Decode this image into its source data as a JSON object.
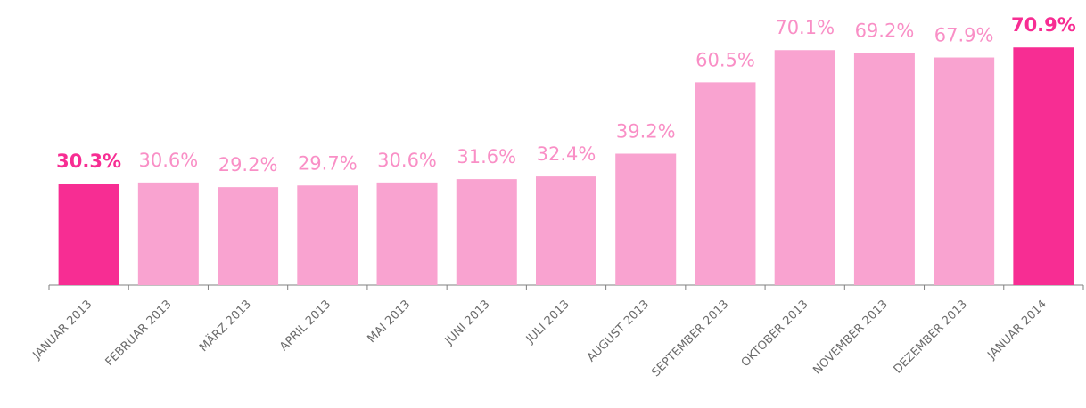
{
  "chart_data": {
    "type": "bar",
    "categories": [
      "JANUAR 2013",
      "FEBRUAR 2013",
      "MÄRZ 2013",
      "APRIL 2013",
      "MAI 2013",
      "JUNI 2013",
      "JULI 2013",
      "AUGUST 2013",
      "SEPTEMBER 2013",
      "OKTOBER 2013",
      "NOVEMBER 2013",
      "DEZEMBER 2013",
      "JANUAR 2014"
    ],
    "values": [
      30.3,
      30.6,
      29.2,
      29.7,
      30.6,
      31.6,
      32.4,
      39.2,
      60.5,
      70.1,
      69.2,
      67.9,
      70.9
    ],
    "value_labels": [
      "30.3%",
      "30.6%",
      "29.2%",
      "29.7%",
      "30.6%",
      "31.6%",
      "32.4%",
      "39.2%",
      "60.5%",
      "70.1%",
      "69.2%",
      "67.9%",
      "70.9%"
    ],
    "colors": [
      "#f72d93",
      "#f9a3d0",
      "#f9a3d0",
      "#f9a3d0",
      "#f9a3d0",
      "#f9a3d0",
      "#f9a3d0",
      "#f9a3d0",
      "#f9a3d0",
      "#f9a3d0",
      "#f9a3d0",
      "#f9a3d0",
      "#f72d93"
    ],
    "label_colors": [
      "#f72d93",
      "#f98fc6",
      "#f98fc6",
      "#f98fc6",
      "#f98fc6",
      "#f98fc6",
      "#f98fc6",
      "#f98fc6",
      "#f98fc6",
      "#f98fc6",
      "#f98fc6",
      "#f98fc6",
      "#f72d93"
    ],
    "ylim": [
      0,
      80
    ]
  }
}
